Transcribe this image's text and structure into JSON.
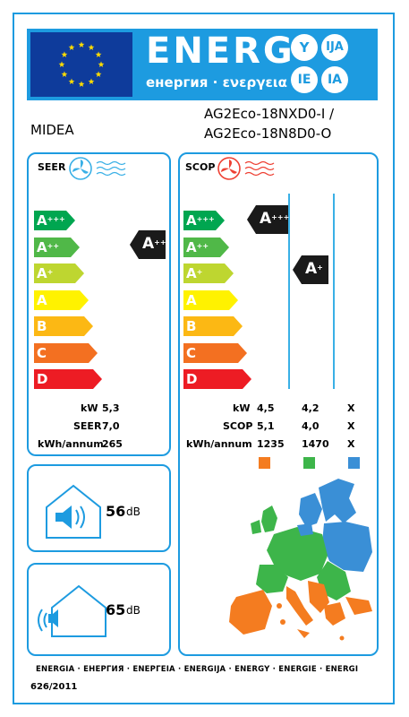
{
  "header": {
    "title": "ENERG",
    "subtitle": "енергия · ενεργεια",
    "lang_badges": [
      "Y",
      "IJA",
      "IE",
      "IA"
    ]
  },
  "supplier": "MIDEA",
  "model": {
    "line1": "AG2Eco-18NXD0-I /",
    "line2": "AG2Eco-18N8D0-O"
  },
  "seer_panel": {
    "title": "SEER",
    "classes": [
      {
        "letter": "A",
        "sup": "+++",
        "color": "#00a650"
      },
      {
        "letter": "A",
        "sup": "++",
        "color": "#50b848"
      },
      {
        "letter": "A",
        "sup": "+",
        "color": "#bed630"
      },
      {
        "letter": "A",
        "sup": "",
        "color": "#fff200"
      },
      {
        "letter": "B",
        "sup": "",
        "color": "#fcb814"
      },
      {
        "letter": "C",
        "sup": "",
        "color": "#f37021"
      },
      {
        "letter": "D",
        "sup": "",
        "color": "#ed1c24"
      }
    ],
    "rating": {
      "letter": "A",
      "sup": "++"
    },
    "values": [
      {
        "label": "kW",
        "value": "5,3"
      },
      {
        "label": "SEER",
        "value": "7,0"
      },
      {
        "label": "kWh/annum",
        "value": "265"
      }
    ]
  },
  "scop_panel": {
    "title": "SCOP",
    "classes": [
      {
        "letter": "A",
        "sup": "+++",
        "color": "#00a650"
      },
      {
        "letter": "A",
        "sup": "++",
        "color": "#50b848"
      },
      {
        "letter": "A",
        "sup": "+",
        "color": "#bed630"
      },
      {
        "letter": "A",
        "sup": "",
        "color": "#fff200"
      },
      {
        "letter": "B",
        "sup": "",
        "color": "#fcb814"
      },
      {
        "letter": "C",
        "sup": "",
        "color": "#f37021"
      },
      {
        "letter": "D",
        "sup": "",
        "color": "#ed1c24"
      }
    ],
    "rating_warm": {
      "letter": "A",
      "sup": "+++"
    },
    "rating_average": {
      "letter": "A",
      "sup": "+"
    },
    "values": [
      {
        "label": "kW",
        "warm": "4,5",
        "average": "4,2",
        "cold": "X"
      },
      {
        "label": "SCOP",
        "warm": "5,1",
        "average": "4,0",
        "cold": "X"
      },
      {
        "label": "kWh/annum",
        "warm": "1235",
        "average": "1470",
        "cold": "X"
      }
    ],
    "zone_colors": {
      "warm": "#f47c20",
      "average": "#3db54a",
      "cold": "#3a8fd6"
    }
  },
  "noise": {
    "indoor": {
      "value": "56",
      "unit": "dB"
    },
    "outdoor": {
      "value": "65",
      "unit": "dB"
    }
  },
  "footer": {
    "energy_words": "ENERGIA · ЕНЕРГИЯ · ΕΝΕΡΓΕΙΑ · ENERGIJA · ENERGY · ENERGIE · ENERGI",
    "regulation": "626/2011"
  },
  "colors": {
    "frame_blue": "#1d9be0",
    "eu_blue": "#0e3b9b",
    "eu_star": "#ffdd00",
    "rating_black": "#1a1a1a"
  }
}
